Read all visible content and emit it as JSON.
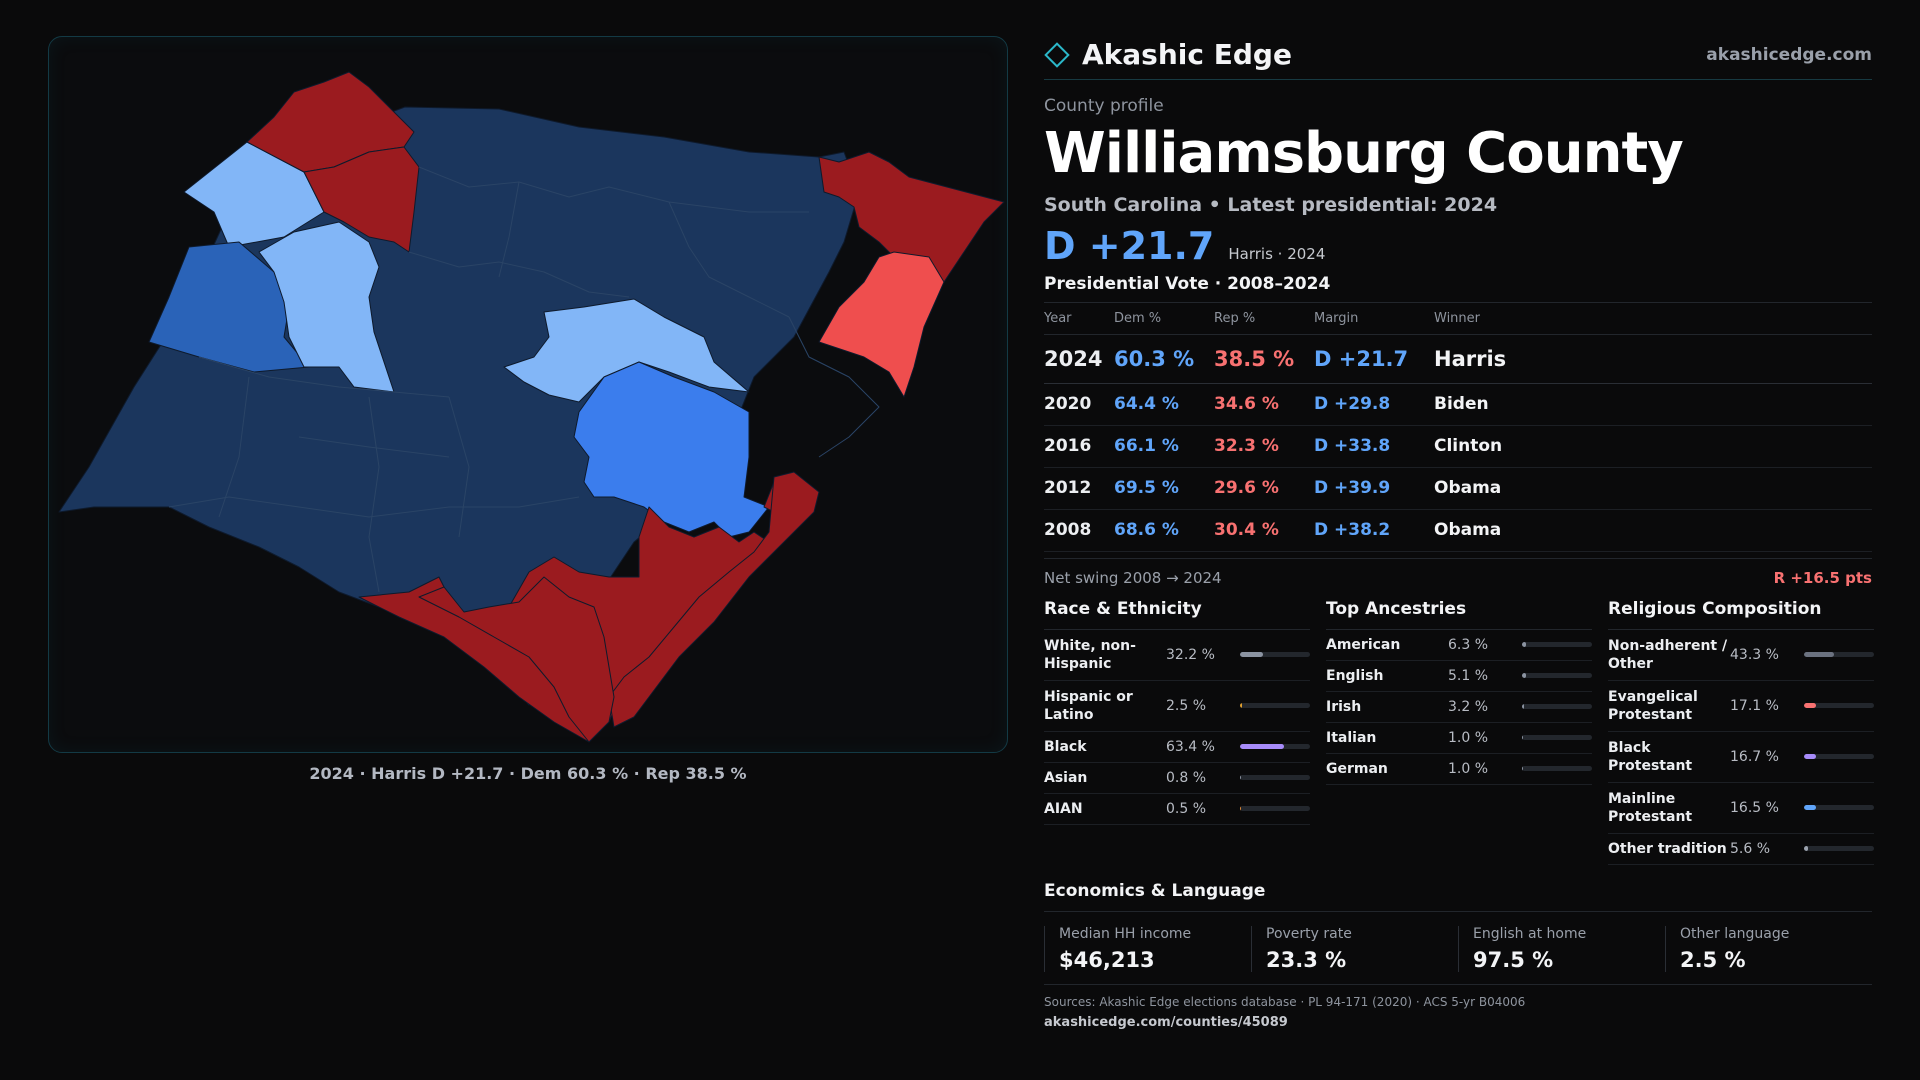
{
  "brand": {
    "name": "Akashic Edge",
    "url": "akashicedge.com"
  },
  "map": {
    "caption": "2024 · Harris D +21.7 · Dem 60.3 % · Rep 38.5 %",
    "colors": {
      "dem_strong": "#1b365d",
      "dem_medium": "#3b7ded",
      "dem_lean": "#2a63b8",
      "dem_light": "#82b6f7",
      "rep_strong": "#9b1b1f",
      "rep_light": "#ef4e4e"
    }
  },
  "profile": {
    "eyebrow": "County profile",
    "title": "Williamsburg County",
    "subtitle": "South Carolina • Latest presidential: 2024",
    "margin": "D +21.7",
    "margin_sub": "Harris · 2024"
  },
  "votes": {
    "title": "Presidential Vote · 2008–2024",
    "headers": {
      "year": "Year",
      "dem": "Dem %",
      "rep": "Rep %",
      "margin": "Margin",
      "winner": "Winner"
    },
    "rows": [
      {
        "year": "2024",
        "dem": "60.3 %",
        "rep": "38.5 %",
        "margin": "D +21.7",
        "winner": "Harris"
      },
      {
        "year": "2020",
        "dem": "64.4 %",
        "rep": "34.6 %",
        "margin": "D +29.8",
        "winner": "Biden"
      },
      {
        "year": "2016",
        "dem": "66.1 %",
        "rep": "32.3 %",
        "margin": "D +33.8",
        "winner": "Clinton"
      },
      {
        "year": "2012",
        "dem": "69.5 %",
        "rep": "29.6 %",
        "margin": "D +39.9",
        "winner": "Obama"
      },
      {
        "year": "2008",
        "dem": "68.6 %",
        "rep": "30.4 %",
        "margin": "D +38.2",
        "winner": "Obama"
      }
    ],
    "swing_label": "Net swing 2008 → 2024",
    "swing_value": "R +16.5 pts"
  },
  "race": {
    "title": "Race & Ethnicity",
    "items": [
      {
        "label": "White, non-Hispanic",
        "value": "32.2 %",
        "pct": 32.2,
        "color": "#8b93a1"
      },
      {
        "label": "Hispanic or Latino",
        "value": "2.5 %",
        "pct": 2.5,
        "color": "#e0a030"
      },
      {
        "label": "Black",
        "value": "63.4 %",
        "pct": 63.4,
        "color": "#a78bfa"
      },
      {
        "label": "Asian",
        "value": "0.8 %",
        "pct": 0.8,
        "color": "#8b93a1"
      },
      {
        "label": "AIAN",
        "value": "0.5 %",
        "pct": 0.5,
        "color": "#e08a3a"
      }
    ]
  },
  "ancestry": {
    "title": "Top Ancestries",
    "items": [
      {
        "label": "American",
        "value": "6.3 %",
        "pct": 6.3,
        "color": "#8b93a1"
      },
      {
        "label": "English",
        "value": "5.1 %",
        "pct": 5.1,
        "color": "#8b93a1"
      },
      {
        "label": "Irish",
        "value": "3.2 %",
        "pct": 3.2,
        "color": "#8b93a1"
      },
      {
        "label": "Italian",
        "value": "1.0 %",
        "pct": 1.0,
        "color": "#8b93a1"
      },
      {
        "label": "German",
        "value": "1.0 %",
        "pct": 1.0,
        "color": "#8b93a1"
      }
    ]
  },
  "religion": {
    "title": "Religious Composition",
    "items": [
      {
        "label": "Non-adherent / Other",
        "value": "43.3 %",
        "pct": 43.3,
        "color": "#6b7280"
      },
      {
        "label": "Evangelical Protestant",
        "value": "17.1 %",
        "pct": 17.1,
        "color": "#f87171"
      },
      {
        "label": "Black Protestant",
        "value": "16.7 %",
        "pct": 16.7,
        "color": "#a78bfa"
      },
      {
        "label": "Mainline Protestant",
        "value": "16.5 %",
        "pct": 16.5,
        "color": "#60a5fa"
      },
      {
        "label": "Other tradition",
        "value": "5.6 %",
        "pct": 5.6,
        "color": "#9ca3af"
      }
    ]
  },
  "economics": {
    "title": "Economics & Language",
    "items": [
      {
        "label": "Median HH income",
        "value": "$46,213"
      },
      {
        "label": "Poverty rate",
        "value": "23.3 %"
      },
      {
        "label": "English at home",
        "value": "97.5 %"
      },
      {
        "label": "Other language",
        "value": "2.5 %"
      }
    ]
  },
  "sources": {
    "text": "Sources: Akashic Edge elections database · PL 94-171 (2020) · ACS 5-yr B04006",
    "url": "akashicedge.com/counties/45089"
  }
}
